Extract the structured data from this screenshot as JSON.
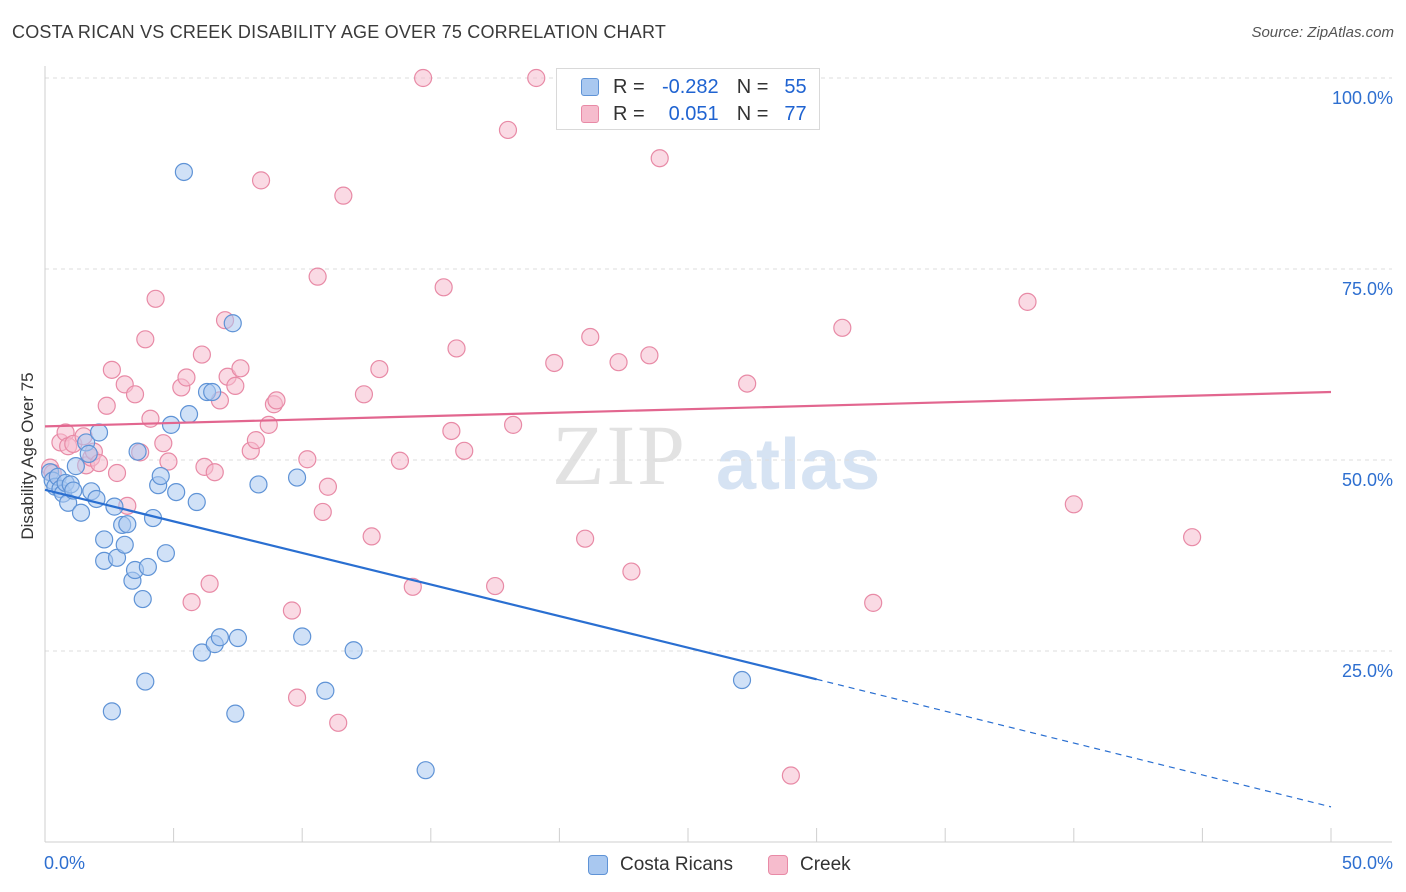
{
  "title": "COSTA RICAN VS CREEK DISABILITY AGE OVER 75 CORRELATION CHART",
  "source": "Source: ZipAtlas.com",
  "watermark": {
    "zip": "ZIP",
    "atlas": "atlas"
  },
  "legend_box": {
    "rows": [
      {
        "r_label": "R =",
        "r_value": "-0.282",
        "n_label": "N =",
        "n_value": "55"
      },
      {
        "r_label": "R =",
        "r_value": "0.051",
        "n_label": "N =",
        "n_value": "77"
      }
    ]
  },
  "bottom_legend": [
    "Costa Ricans",
    "Creek"
  ],
  "colors": {
    "blue_fill": "#a9c8f0",
    "blue_stroke": "#5f93d6",
    "blue_line": "#2a6fd1",
    "pink_fill": "#f6bccd",
    "pink_stroke": "#e88aa6",
    "pink_line": "#e2668f",
    "tick_text": "#2e6fd0",
    "grid": "#dddddd"
  },
  "chart_data": {
    "type": "scatter",
    "title": "COSTA RICAN VS CREEK DISABILITY AGE OVER 75 CORRELATION CHART",
    "xlabel": "",
    "ylabel": "Disability Age Over 75",
    "xlim": [
      0,
      50
    ],
    "ylim": [
      0,
      100
    ],
    "x_tick_labels": [
      "0.0%",
      "50.0%"
    ],
    "y_tick_labels": [
      "25.0%",
      "50.0%",
      "75.0%",
      "100.0%"
    ],
    "y_ticks": [
      25,
      50,
      75,
      100
    ],
    "grid": true,
    "legend_placement": "top-center",
    "series": [
      {
        "name": "Costa Ricans",
        "r": -0.282,
        "n": 55,
        "trend": {
          "x0": 0,
          "y0": 46.1,
          "x1": 30,
          "y1": 21.3,
          "dashed_to_x": 50,
          "dashed_to_y": 4.6
        },
        "points": [
          [
            0.2,
            48.4
          ],
          [
            0.3,
            47.3
          ],
          [
            0.4,
            46.5
          ],
          [
            0.5,
            47.8
          ],
          [
            0.6,
            46.2
          ],
          [
            0.7,
            45.6
          ],
          [
            0.8,
            47.0
          ],
          [
            0.9,
            44.4
          ],
          [
            1.0,
            46.8
          ],
          [
            1.1,
            46.0
          ],
          [
            1.2,
            49.2
          ],
          [
            1.4,
            43.1
          ],
          [
            1.6,
            52.3
          ],
          [
            1.7,
            50.8
          ],
          [
            1.8,
            45.9
          ],
          [
            2.0,
            44.9
          ],
          [
            2.1,
            53.6
          ],
          [
            2.3,
            36.8
          ],
          [
            2.3,
            39.6
          ],
          [
            2.6,
            17.1
          ],
          [
            2.7,
            43.9
          ],
          [
            2.8,
            37.2
          ],
          [
            3.0,
            41.5
          ],
          [
            3.1,
            38.9
          ],
          [
            3.2,
            41.6
          ],
          [
            3.4,
            34.2
          ],
          [
            3.5,
            35.6
          ],
          [
            3.6,
            51.1
          ],
          [
            3.8,
            31.8
          ],
          [
            3.9,
            21.0
          ],
          [
            4.0,
            36.0
          ],
          [
            4.2,
            42.4
          ],
          [
            4.4,
            46.7
          ],
          [
            4.5,
            47.9
          ],
          [
            4.7,
            37.8
          ],
          [
            4.9,
            54.6
          ],
          [
            5.1,
            45.8
          ],
          [
            5.4,
            87.7
          ],
          [
            5.6,
            56.0
          ],
          [
            5.9,
            44.5
          ],
          [
            6.1,
            24.8
          ],
          [
            6.3,
            58.9
          ],
          [
            6.5,
            58.9
          ],
          [
            6.6,
            25.9
          ],
          [
            6.8,
            26.8
          ],
          [
            7.3,
            67.9
          ],
          [
            7.4,
            16.8
          ],
          [
            7.5,
            26.7
          ],
          [
            8.3,
            46.8
          ],
          [
            9.8,
            47.7
          ],
          [
            10.0,
            26.9
          ],
          [
            10.9,
            19.8
          ],
          [
            12.0,
            25.1
          ],
          [
            14.8,
            9.4
          ],
          [
            27.1,
            21.2
          ]
        ]
      },
      {
        "name": "Creek",
        "r": 0.051,
        "n": 77,
        "trend": {
          "x0": 0,
          "y0": 54.4,
          "x1": 50,
          "y1": 58.9
        },
        "points": [
          [
            0.2,
            49.0
          ],
          [
            0.3,
            48.3
          ],
          [
            0.6,
            52.3
          ],
          [
            0.8,
            53.6
          ],
          [
            0.9,
            51.8
          ],
          [
            1.1,
            52.1
          ],
          [
            1.5,
            53.1
          ],
          [
            1.6,
            49.3
          ],
          [
            1.8,
            50.3
          ],
          [
            1.9,
            51.1
          ],
          [
            2.1,
            49.6
          ],
          [
            2.4,
            57.1
          ],
          [
            2.6,
            61.8
          ],
          [
            2.8,
            48.3
          ],
          [
            3.1,
            59.9
          ],
          [
            3.2,
            44.0
          ],
          [
            3.5,
            58.6
          ],
          [
            3.7,
            51.0
          ],
          [
            3.9,
            65.8
          ],
          [
            4.1,
            55.4
          ],
          [
            4.3,
            71.1
          ],
          [
            4.6,
            52.2
          ],
          [
            4.8,
            49.8
          ],
          [
            5.3,
            59.5
          ],
          [
            5.5,
            60.8
          ],
          [
            5.7,
            31.4
          ],
          [
            6.1,
            63.8
          ],
          [
            6.2,
            49.1
          ],
          [
            6.4,
            33.8
          ],
          [
            6.6,
            48.4
          ],
          [
            6.8,
            57.8
          ],
          [
            7.0,
            68.3
          ],
          [
            7.1,
            60.9
          ],
          [
            7.4,
            59.7
          ],
          [
            7.6,
            62.0
          ],
          [
            8.0,
            51.2
          ],
          [
            8.2,
            52.6
          ],
          [
            8.4,
            86.6
          ],
          [
            8.7,
            54.6
          ],
          [
            8.9,
            57.3
          ],
          [
            9.0,
            57.8
          ],
          [
            9.6,
            30.3
          ],
          [
            9.8,
            18.9
          ],
          [
            10.2,
            50.1
          ],
          [
            10.6,
            74.0
          ],
          [
            10.8,
            43.2
          ],
          [
            11.0,
            46.5
          ],
          [
            11.4,
            15.6
          ],
          [
            11.6,
            84.6
          ],
          [
            12.4,
            58.6
          ],
          [
            12.7,
            40.0
          ],
          [
            13.0,
            61.9
          ],
          [
            13.8,
            49.9
          ],
          [
            14.3,
            33.4
          ],
          [
            14.7,
            100.0
          ],
          [
            15.5,
            72.6
          ],
          [
            15.8,
            53.8
          ],
          [
            16.0,
            64.6
          ],
          [
            16.3,
            51.2
          ],
          [
            17.5,
            33.5
          ],
          [
            18.0,
            93.2
          ],
          [
            18.2,
            54.6
          ],
          [
            19.1,
            100.0
          ],
          [
            19.8,
            62.7
          ],
          [
            21.0,
            39.7
          ],
          [
            21.2,
            66.1
          ],
          [
            22.3,
            62.8
          ],
          [
            22.6,
            100.0
          ],
          [
            22.8,
            35.4
          ],
          [
            23.5,
            63.7
          ],
          [
            23.9,
            89.5
          ],
          [
            27.3,
            60.0
          ],
          [
            29.0,
            8.7
          ],
          [
            31.0,
            67.3
          ],
          [
            32.2,
            31.3
          ],
          [
            38.2,
            70.7
          ],
          [
            40.0,
            44.2
          ],
          [
            44.6,
            39.9
          ]
        ]
      }
    ]
  }
}
